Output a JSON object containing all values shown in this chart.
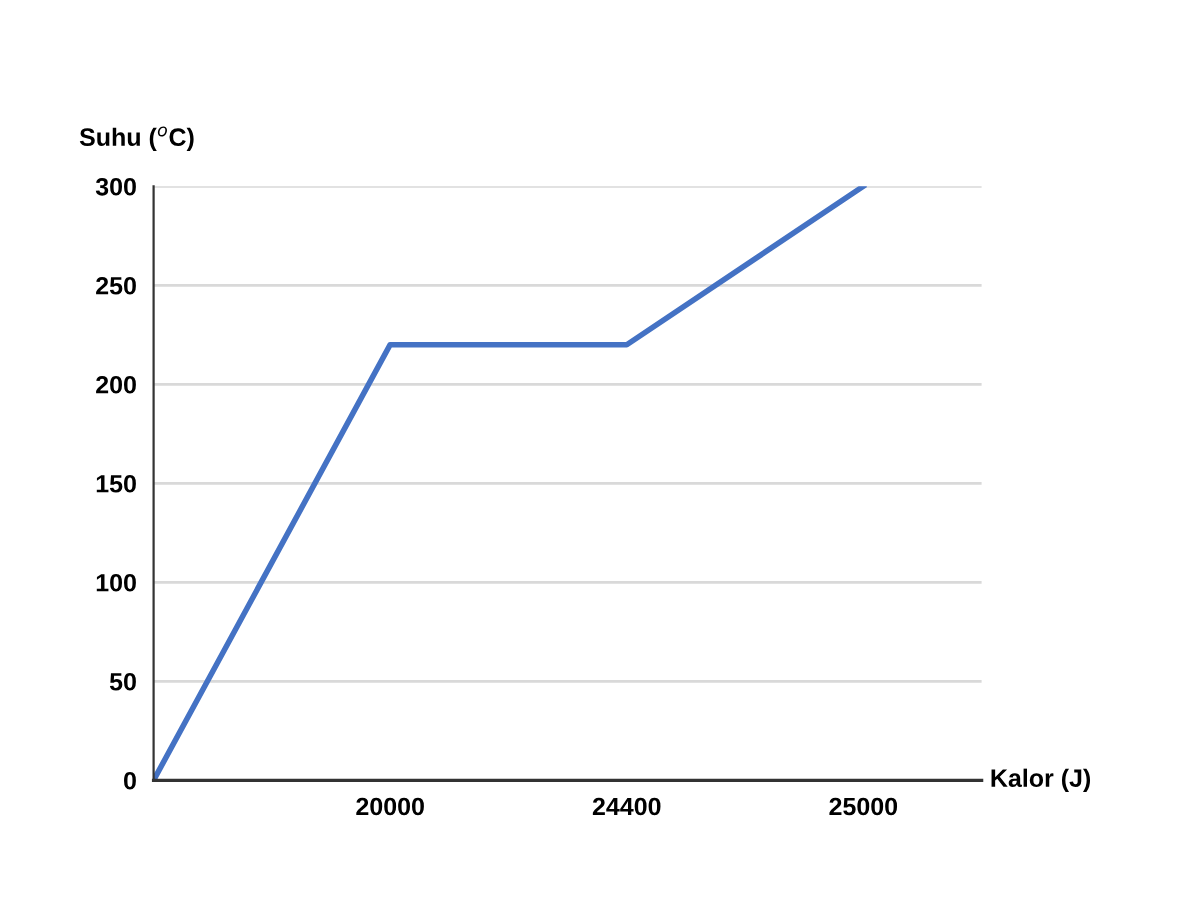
{
  "chart_data": {
    "type": "line",
    "xlabel": "Kalor (J)",
    "ylabel": "Suhu ($^{o}$C)",
    "categories": [
      null,
      "20000",
      "24400",
      "25000"
    ],
    "series": [
      {
        "color": "#4472c4",
        "values": [
          0,
          220,
          220,
          300
        ]
      }
    ],
    "ylim": [
      0,
      300
    ],
    "yticks": [
      0,
      50,
      100,
      150,
      200,
      250,
      300
    ],
    "grid": "y",
    "marker": "none"
  }
}
